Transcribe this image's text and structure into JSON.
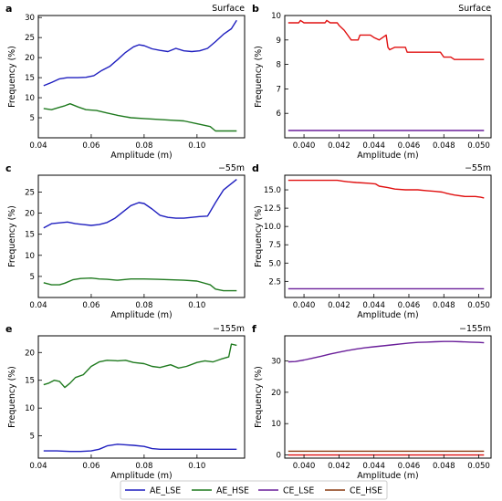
{
  "colors": {
    "AE_LSE": "#1f1fbf",
    "AE_HSE": "#1f7a1f",
    "CE_LSE": "#6a1f9a",
    "CE_HSE": "#8a3a10",
    "red": "#e01010"
  },
  "legend": {
    "entries": [
      {
        "key": "AE_LSE",
        "label": "AE_LSE"
      },
      {
        "key": "AE_HSE",
        "label": "AE_HSE"
      },
      {
        "key": "CE_LSE",
        "label": "CE_LSE"
      },
      {
        "key": "CE_HSE",
        "label": "CE_HSE"
      }
    ]
  },
  "chart_data": [
    {
      "type": "line",
      "panel_label": "a",
      "title": "Surface",
      "xlabel": "Amplitude (m)",
      "ylabel": "Frequency (%)",
      "xlim": [
        0.04,
        0.118
      ],
      "ylim": [
        0,
        30.5
      ],
      "xticks": [
        0.04,
        0.06,
        0.08,
        0.1
      ],
      "xtick_labels": [
        "0.04",
        "0.06",
        "0.08",
        "0.10"
      ],
      "yticks": [
        5,
        10,
        15,
        20,
        25,
        30
      ],
      "ytick_labels": [
        "5",
        "10",
        "15",
        "20",
        "25",
        "30"
      ],
      "series": [
        {
          "key": "AE_LSE",
          "x": [
            0.042,
            0.045,
            0.048,
            0.051,
            0.055,
            0.058,
            0.061,
            0.064,
            0.067,
            0.07,
            0.073,
            0.076,
            0.078,
            0.08,
            0.083,
            0.086,
            0.089,
            0.092,
            0.095,
            0.098,
            0.101,
            0.104,
            0.107,
            0.11,
            0.113,
            0.115
          ],
          "y": [
            13,
            13.8,
            14.7,
            15,
            15,
            15.1,
            15.5,
            16.8,
            17.8,
            19.5,
            21.3,
            22.7,
            23.2,
            23,
            22.2,
            21.8,
            21.5,
            22.3,
            21.7,
            21.5,
            21.7,
            22.3,
            24,
            25.8,
            27.2,
            29.3
          ]
        },
        {
          "key": "AE_HSE",
          "x": [
            0.042,
            0.045,
            0.048,
            0.05,
            0.052,
            0.055,
            0.058,
            0.062,
            0.066,
            0.07,
            0.075,
            0.08,
            0.085,
            0.09,
            0.095,
            0.1,
            0.105,
            0.107,
            0.11,
            0.113,
            0.115
          ],
          "y": [
            7.3,
            7,
            7.6,
            8,
            8.5,
            7.7,
            7,
            6.8,
            6.2,
            5.6,
            5,
            4.8,
            4.6,
            4.4,
            4.2,
            3.5,
            2.8,
            1.7,
            1.7,
            1.7,
            1.7
          ]
        }
      ]
    },
    {
      "type": "line",
      "panel_label": "b",
      "title": "Surface",
      "xlabel": "Amplitude (m)",
      "ylabel": "Frequency (%)",
      "xlim": [
        0.0389,
        0.0507
      ],
      "ylim": [
        5.0,
        10.0
      ],
      "xticks": [
        0.04,
        0.042,
        0.044,
        0.046,
        0.048,
        0.05
      ],
      "xtick_labels": [
        "0.040",
        "0.042",
        "0.044",
        "0.046",
        "0.048",
        "0.050"
      ],
      "yticks": [
        6,
        7,
        8,
        9,
        10
      ],
      "ytick_labels": [
        "6",
        "7",
        "8",
        "9",
        "10"
      ],
      "series": [
        {
          "key": "red",
          "x": [
            0.0391,
            0.0397,
            0.0398,
            0.04,
            0.0402,
            0.0412,
            0.0413,
            0.0415,
            0.0419,
            0.042,
            0.0423,
            0.0425,
            0.0427,
            0.0428,
            0.0431,
            0.0432,
            0.0438,
            0.044,
            0.0443,
            0.0445,
            0.0447,
            0.0448,
            0.0449,
            0.0452,
            0.0458,
            0.0459,
            0.0473,
            0.0474,
            0.0478,
            0.048,
            0.0484,
            0.0486,
            0.0503
          ],
          "y": [
            9.7,
            9.7,
            9.8,
            9.7,
            9.7,
            9.7,
            9.8,
            9.7,
            9.7,
            9.6,
            9.4,
            9.2,
            9,
            9,
            9,
            9.2,
            9.2,
            9.1,
            9,
            9.1,
            9.2,
            8.7,
            8.6,
            8.7,
            8.7,
            8.5,
            8.5,
            8.5,
            8.5,
            8.3,
            8.3,
            8.2,
            8.2
          ]
        },
        {
          "key": "CE_LSE",
          "x": [
            0.0391,
            0.0503
          ],
          "y": [
            5.3,
            5.3
          ]
        }
      ]
    },
    {
      "type": "line",
      "panel_label": "c",
      "title": "−55m",
      "xlabel": "Amplitude (m)",
      "ylabel": "Frequency (%)",
      "xlim": [
        0.04,
        0.118
      ],
      "ylim": [
        0,
        29
      ],
      "xticks": [
        0.04,
        0.06,
        0.08,
        0.1
      ],
      "xtick_labels": [
        "0.04",
        "0.06",
        "0.08",
        "0.10"
      ],
      "yticks": [
        5,
        10,
        15,
        20,
        25
      ],
      "ytick_labels": [
        "5",
        "10",
        "15",
        "20",
        "25"
      ],
      "series": [
        {
          "key": "AE_LSE",
          "x": [
            0.042,
            0.045,
            0.048,
            0.051,
            0.054,
            0.057,
            0.06,
            0.063,
            0.066,
            0.069,
            0.072,
            0.075,
            0.078,
            0.08,
            0.083,
            0.086,
            0.089,
            0.092,
            0.095,
            0.098,
            0.101,
            0.104,
            0.107,
            0.11,
            0.113,
            0.115
          ],
          "y": [
            16.5,
            17.5,
            17.7,
            17.9,
            17.5,
            17.3,
            17.1,
            17.3,
            17.8,
            18.8,
            20.3,
            21.8,
            22.5,
            22.3,
            21,
            19.5,
            19,
            18.8,
            18.8,
            19,
            19.2,
            19.3,
            22.5,
            25.5,
            27,
            28
          ]
        },
        {
          "key": "AE_HSE",
          "x": [
            0.042,
            0.045,
            0.048,
            0.05,
            0.053,
            0.056,
            0.06,
            0.063,
            0.066,
            0.07,
            0.075,
            0.08,
            0.085,
            0.09,
            0.095,
            0.1,
            0.105,
            0.107,
            0.11,
            0.113,
            0.115
          ],
          "y": [
            3.5,
            3,
            3,
            3.4,
            4.2,
            4.5,
            4.6,
            4.4,
            4.3,
            4.1,
            4.4,
            4.4,
            4.3,
            4.2,
            4.1,
            3.9,
            3,
            2,
            1.6,
            1.6,
            1.6
          ]
        }
      ]
    },
    {
      "type": "line",
      "panel_label": "d",
      "title": "−55m",
      "xlabel": "Amplitude (m)",
      "ylabel": "Frequency (%)",
      "xlim": [
        0.0389,
        0.0507
      ],
      "ylim": [
        0.3,
        17.0
      ],
      "xticks": [
        0.04,
        0.042,
        0.044,
        0.046,
        0.048,
        0.05
      ],
      "xtick_labels": [
        "0.040",
        "0.042",
        "0.044",
        "0.046",
        "0.048",
        "0.050"
      ],
      "yticks": [
        2.5,
        5.0,
        7.5,
        10.0,
        12.5,
        15.0
      ],
      "ytick_labels": [
        "2.5",
        "5.0",
        "7.5",
        "10.0",
        "12.5",
        "15.0"
      ],
      "series": [
        {
          "key": "red",
          "x": [
            0.0391,
            0.0398,
            0.0405,
            0.0412,
            0.0419,
            0.0422,
            0.0425,
            0.043,
            0.0437,
            0.0441,
            0.0443,
            0.0448,
            0.0452,
            0.0458,
            0.0465,
            0.047,
            0.0475,
            0.0479,
            0.0482,
            0.0486,
            0.0492,
            0.0498,
            0.0501,
            0.0503
          ],
          "y": [
            16.3,
            16.3,
            16.3,
            16.3,
            16.3,
            16.2,
            16.1,
            16,
            15.9,
            15.8,
            15.5,
            15.3,
            15.1,
            15,
            15,
            14.9,
            14.8,
            14.7,
            14.5,
            14.3,
            14.1,
            14.1,
            14.0,
            13.9
          ]
        },
        {
          "key": "CE_LSE",
          "x": [
            0.0391,
            0.0503
          ],
          "y": [
            1.5,
            1.5
          ]
        }
      ]
    },
    {
      "type": "line",
      "panel_label": "e",
      "title": "−155m",
      "xlabel": "Amplitude (m)",
      "ylabel": "Frequency (%)",
      "xlim": [
        0.04,
        0.118
      ],
      "ylim": [
        1.0,
        23.0
      ],
      "xticks": [
        0.04,
        0.06,
        0.08,
        0.1
      ],
      "xtick_labels": [
        "0.04",
        "0.06",
        "0.08",
        "0.10"
      ],
      "yticks": [
        5,
        10,
        15,
        20
      ],
      "ytick_labels": [
        "5",
        "10",
        "15",
        "20"
      ],
      "series": [
        {
          "key": "AE_HSE",
          "x": [
            0.042,
            0.044,
            0.046,
            0.048,
            0.05,
            0.052,
            0.054,
            0.057,
            0.06,
            0.063,
            0.066,
            0.07,
            0.073,
            0.076,
            0.08,
            0.083,
            0.086,
            0.09,
            0.093,
            0.096,
            0.1,
            0.103,
            0.106,
            0.109,
            0.112,
            0.113,
            0.115
          ],
          "y": [
            14.2,
            14.5,
            15,
            14.8,
            13.7,
            14.5,
            15.5,
            16,
            17.5,
            18.3,
            18.6,
            18.5,
            18.6,
            18.2,
            18,
            17.5,
            17.3,
            17.8,
            17.2,
            17.5,
            18.2,
            18.5,
            18.3,
            18.8,
            19.2,
            21.5,
            21.3
          ]
        },
        {
          "key": "AE_LSE",
          "x": [
            0.042,
            0.047,
            0.052,
            0.056,
            0.06,
            0.063,
            0.066,
            0.07,
            0.073,
            0.076,
            0.08,
            0.083,
            0.086,
            0.09,
            0.1,
            0.11,
            0.115
          ],
          "y": [
            2.3,
            2.3,
            2.2,
            2.2,
            2.3,
            2.6,
            3.2,
            3.5,
            3.4,
            3.3,
            3.1,
            2.7,
            2.6,
            2.6,
            2.6,
            2.6,
            2.6
          ]
        }
      ]
    },
    {
      "type": "line",
      "panel_label": "f",
      "title": "−155m",
      "xlabel": "Amplitude (m)",
      "ylabel": "Frequency (%)",
      "xlim": [
        0.0389,
        0.0507
      ],
      "ylim": [
        -1.0,
        38.0
      ],
      "xticks": [
        0.04,
        0.042,
        0.044,
        0.046,
        0.048,
        0.05
      ],
      "xtick_labels": [
        "0.040",
        "0.042",
        "0.044",
        "0.046",
        "0.048",
        "0.050"
      ],
      "yticks": [
        0,
        10,
        20,
        30
      ],
      "ytick_labels": [
        "0",
        "10",
        "20",
        "30"
      ],
      "series": [
        {
          "key": "CE_LSE",
          "x": [
            0.0391,
            0.0395,
            0.04,
            0.0405,
            0.041,
            0.0415,
            0.042,
            0.0425,
            0.043,
            0.0435,
            0.044,
            0.0445,
            0.045,
            0.0455,
            0.046,
            0.0465,
            0.047,
            0.0475,
            0.048,
            0.0485,
            0.049,
            0.0495,
            0.05,
            0.0503
          ],
          "y": [
            29.7,
            29.8,
            30.3,
            30.9,
            31.5,
            32.2,
            32.8,
            33.3,
            33.8,
            34.2,
            34.5,
            34.8,
            35.1,
            35.4,
            35.7,
            35.9,
            36,
            36.1,
            36.2,
            36.2,
            36.1,
            36,
            35.9,
            35.8
          ]
        },
        {
          "key": "CE_HSE",
          "x": [
            0.0391,
            0.0503
          ],
          "y": [
            1.2,
            1.2
          ]
        },
        {
          "key": "red",
          "x": [
            0.0391,
            0.0503
          ],
          "y": [
            0.0,
            0.0
          ]
        }
      ]
    }
  ]
}
